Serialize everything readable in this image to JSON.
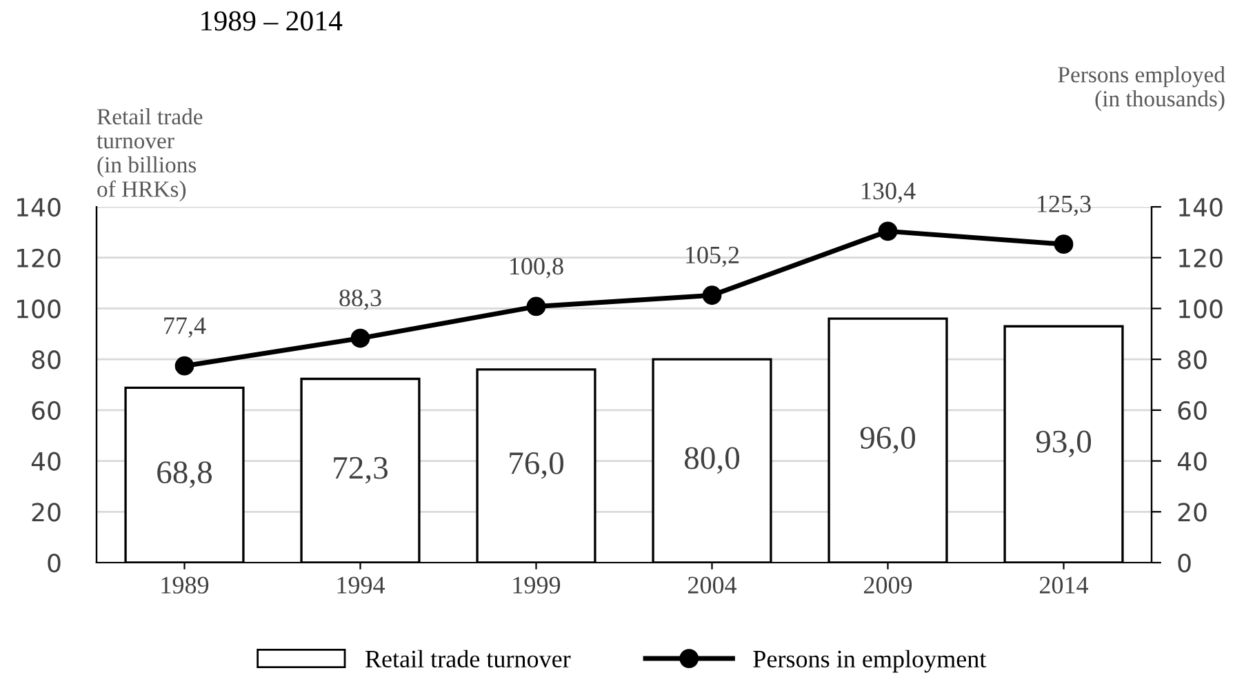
{
  "chart_data": {
    "type": "bar",
    "title": "1989 – 2014",
    "ylabel": "Retail trade\nturnover\n(in billions\nof HRKs)",
    "y2label": "Persons employed\n(in thousands)",
    "categories": [
      "1989",
      "1994",
      "1999",
      "2004",
      "2009",
      "2014"
    ],
    "series": [
      {
        "name": "Retail trade turnover",
        "color": "#ffffff",
        "values": [
          68.8,
          72.3,
          76.0,
          80.0,
          96.0,
          93.0
        ],
        "value_labels": [
          "68,8",
          "72,3",
          "76,0",
          "80,0",
          "96,0",
          "93,0"
        ]
      },
      {
        "name": "Persons in employment",
        "type": "line",
        "axis": "y2",
        "color": "#000000",
        "marker": "circle",
        "values": [
          77.4,
          88.3,
          100.8,
          105.2,
          130.4,
          125.3
        ],
        "value_labels": [
          "77,4",
          "88,3",
          "100,8",
          "105,2",
          "130,4",
          "125,3"
        ]
      }
    ],
    "ylim": [
      0,
      140
    ],
    "yticks": [
      0,
      20,
      40,
      60,
      80,
      100,
      120,
      140
    ],
    "y2lim": [
      0,
      140
    ],
    "y2ticks": [
      0,
      20,
      40,
      60,
      80,
      100,
      120,
      140
    ],
    "grid": "y",
    "legend": "bottom"
  }
}
